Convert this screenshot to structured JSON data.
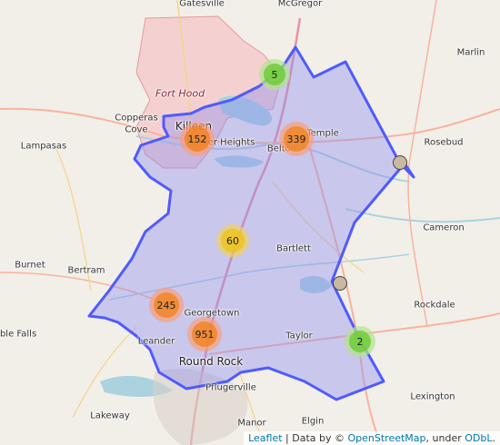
{
  "map": {
    "places": [
      {
        "name": "Gatesville",
        "cls": "",
        "key": "gatesville"
      },
      {
        "name": "McGregor",
        "cls": "",
        "key": "mcgregor"
      },
      {
        "name": "Marlin",
        "cls": "",
        "key": "marlin"
      },
      {
        "name": "Fort Hood",
        "cls": "mil",
        "key": "forthood"
      },
      {
        "name": "Copperas",
        "cls": "",
        "key": "copperas1"
      },
      {
        "name": "Cove",
        "cls": "",
        "key": "copperas2"
      },
      {
        "name": "Killeen",
        "cls": "big",
        "key": "killeen"
      },
      {
        "name": "Harker Heights",
        "cls": "",
        "key": "harker"
      },
      {
        "name": "Belton",
        "cls": "",
        "key": "belton"
      },
      {
        "name": "Temple",
        "cls": "",
        "key": "temple"
      },
      {
        "name": "Rosebud",
        "cls": "",
        "key": "rosebud"
      },
      {
        "name": "Lampasas",
        "cls": "",
        "key": "lampasas"
      },
      {
        "name": "Cameron",
        "cls": "",
        "key": "cameron"
      },
      {
        "name": "Bartlett",
        "cls": "",
        "key": "bartlett"
      },
      {
        "name": "Burnet",
        "cls": "",
        "key": "burnet"
      },
      {
        "name": "Bertram",
        "cls": "",
        "key": "bertram"
      },
      {
        "name": "Georgetown",
        "cls": "",
        "key": "georgetown"
      },
      {
        "name": "Rockdale",
        "cls": "",
        "key": "rockdale"
      },
      {
        "name": "rble Falls",
        "cls": "",
        "key": "marble"
      },
      {
        "name": "Leander",
        "cls": "",
        "key": "leander"
      },
      {
        "name": "Taylor",
        "cls": "",
        "key": "taylor"
      },
      {
        "name": "Round Rock",
        "cls": "big",
        "key": "roundrock"
      },
      {
        "name": "Pflugerville",
        "cls": "",
        "key": "pflugerville"
      },
      {
        "name": "Lexington",
        "cls": "",
        "key": "lexington"
      },
      {
        "name": "Lakeway",
        "cls": "",
        "key": "lakeway"
      },
      {
        "name": "Manor",
        "cls": "",
        "key": "manor"
      },
      {
        "name": "Elgin",
        "cls": "",
        "key": "elgin"
      }
    ],
    "clusters": [
      {
        "count": "5",
        "color": "green",
        "key": "c5"
      },
      {
        "count": "152",
        "color": "orange",
        "key": "c152"
      },
      {
        "count": "339",
        "color": "orange",
        "key": "c339"
      },
      {
        "count": "60",
        "color": "yellow",
        "key": "c60"
      },
      {
        "count": "245",
        "color": "orange",
        "key": "c245"
      },
      {
        "count": "951",
        "color": "orange",
        "key": "c951"
      },
      {
        "count": "2",
        "color": "green",
        "key": "c2"
      }
    ],
    "markers": [
      {
        "key": "m1"
      },
      {
        "key": "m2"
      }
    ],
    "colors": {
      "region_stroke": "#4f5bff",
      "region_fill": "#8c8cf0",
      "military_fill": "#f5b5b5",
      "water": "#aad3df",
      "highway": "#e892a2",
      "trunk": "#f9b29c",
      "minor_road": "#f7d28a"
    }
  },
  "attribution": {
    "leaflet": "Leaflet",
    "sep1": " | Data by © ",
    "osm": "OpenStreetMap",
    "sep2": ", under ",
    "odbl": "ODbL",
    "end": "."
  }
}
